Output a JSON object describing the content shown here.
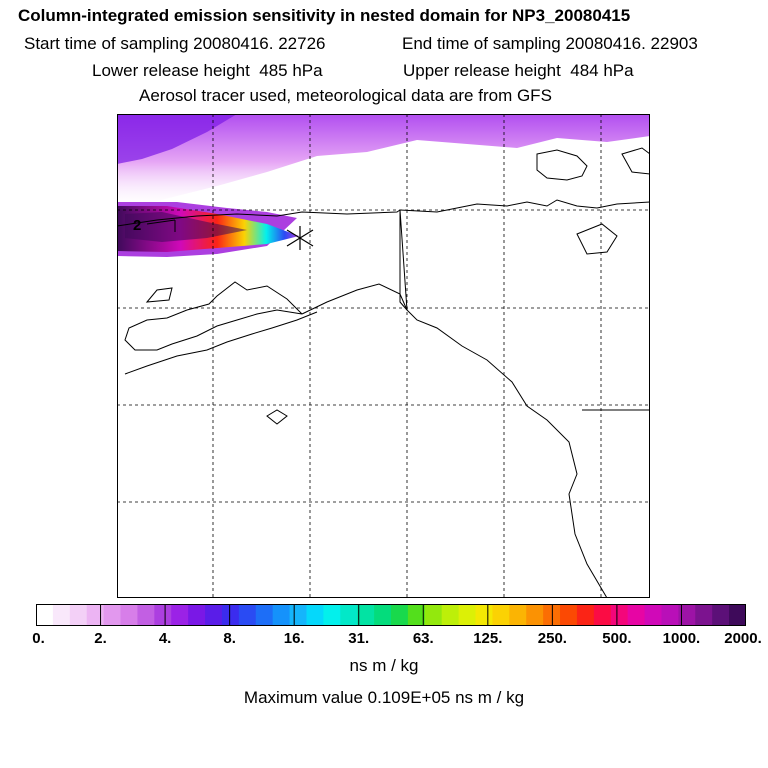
{
  "chart_data": {
    "type": "heatmap",
    "title": "Column-integrated emission sensitivity in nested domain for NP3_20080415",
    "subtitle_lines": [
      [
        "Start time of sampling 20080416. 22726",
        "End time of sampling 20080416. 22903"
      ],
      [
        "Lower release height  485 hPa",
        "Upper release height  484 hPa"
      ],
      [
        "Aerosol tracer used, meteorological data are from GFS"
      ]
    ],
    "map_marker_label": "2",
    "colorbar": {
      "tick_labels": [
        "0.",
        "2.",
        "4.",
        "8.",
        "16.",
        "31.",
        "63.",
        "125.",
        "250.",
        "500.",
        "1000.",
        "2000."
      ],
      "colors": [
        "#ffffff",
        "#f9e8fb",
        "#f3d0f7",
        "#ecb4f3",
        "#e298ee",
        "#d77ee9",
        "#c25fe3",
        "#ac3fe0",
        "#9b22e6",
        "#7a18e6",
        "#5a1de8",
        "#3b2cee",
        "#2a4bf3",
        "#1d6ef7",
        "#1592fb",
        "#15b5fb",
        "#05d8fb",
        "#03f0ec",
        "#02e8c8",
        "#02e3a3",
        "#04dc7c",
        "#19d94c",
        "#53df1c",
        "#93e80d",
        "#bdef09",
        "#dcf006",
        "#f4e803",
        "#fbd203",
        "#fbb403",
        "#fb9203",
        "#fb6e03",
        "#fb4903",
        "#fb2416",
        "#fb0c44",
        "#f4067a",
        "#e705a4",
        "#d009b8",
        "#b90fb8",
        "#9d13a6",
        "#7c138f",
        "#5c1078",
        "#3e0a5a"
      ],
      "units": "ns m / kg"
    },
    "max_value_text": "Maximum value  0.109E+05 ns m / kg"
  }
}
